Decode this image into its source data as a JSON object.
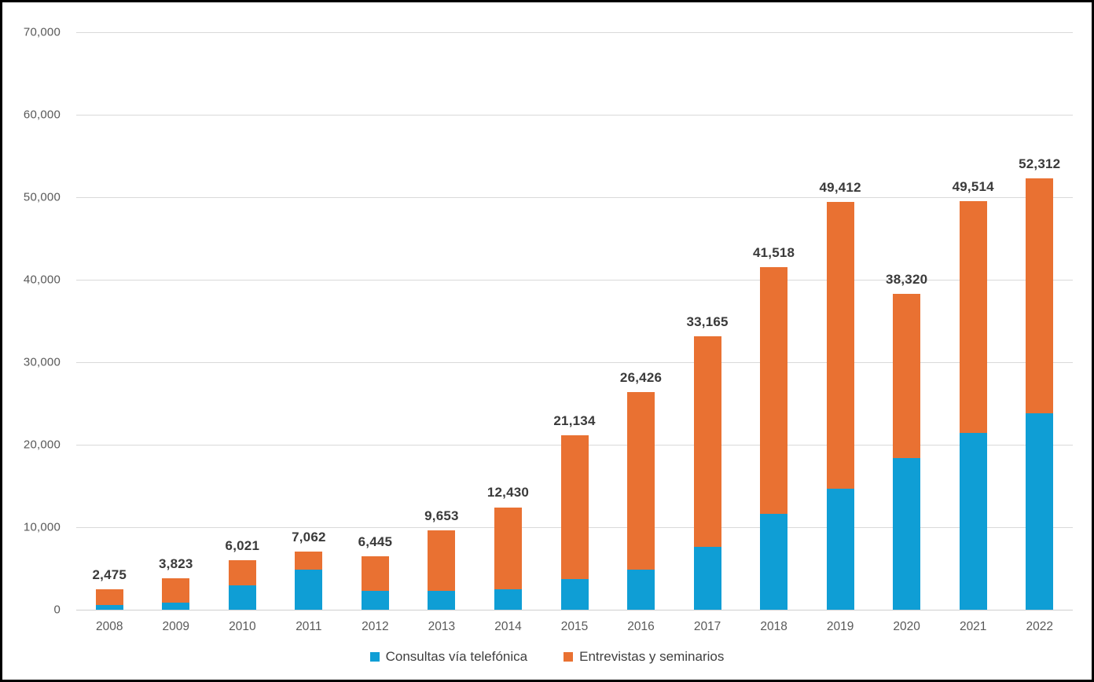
{
  "chart_data": {
    "type": "bar",
    "stacked": true,
    "categories": [
      "2008",
      "2009",
      "2010",
      "2011",
      "2012",
      "2013",
      "2014",
      "2015",
      "2016",
      "2017",
      "2018",
      "2019",
      "2020",
      "2021",
      "2022"
    ],
    "series": [
      {
        "name": "Consultas vía telefónica",
        "color": "#0F9ED5",
        "values": [
          600,
          850,
          3000,
          4900,
          2300,
          2300,
          2500,
          3700,
          4900,
          7600,
          11600,
          14700,
          18400,
          21400,
          23800
        ]
      },
      {
        "name": "Entrevistas y seminarios",
        "color": "#E97132",
        "values": [
          1875,
          2973,
          3021,
          2162,
          4145,
          7353,
          9930,
          17434,
          21526,
          25565,
          29918,
          34712,
          19920,
          28114,
          28512
        ]
      }
    ],
    "totals": [
      2475,
      3823,
      6021,
      7062,
      6445,
      9653,
      12430,
      21134,
      26426,
      33165,
      41518,
      49412,
      38320,
      49514,
      52312
    ],
    "total_labels": [
      "2,475",
      "3,823",
      "6,021",
      "7,062",
      "6,445",
      "9,653",
      "12,430",
      "21,134",
      "26,426",
      "33,165",
      "41,518",
      "49,412",
      "38,320",
      "49,514",
      "52,312"
    ],
    "title": "",
    "xlabel": "",
    "ylabel": "",
    "ylim": [
      0,
      70000
    ],
    "ytick_values": [
      0,
      10000,
      20000,
      30000,
      40000,
      50000,
      60000,
      70000
    ],
    "ytick_labels": [
      "0",
      "10,000",
      "20,000",
      "30,000",
      "40,000",
      "50,000",
      "60,000",
      "70,000"
    ],
    "grid": true,
    "legend_position": "bottom"
  }
}
